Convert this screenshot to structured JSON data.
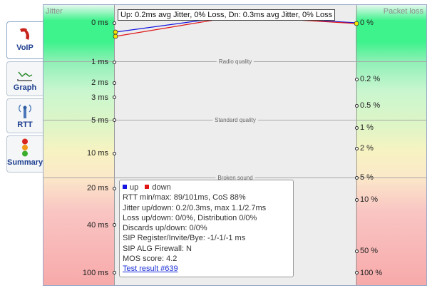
{
  "tabs": [
    {
      "label": "VoIP",
      "icon": "phone-icon",
      "active": true
    },
    {
      "label": "Graph",
      "icon": "graph-icon",
      "active": false
    },
    {
      "label": "RTT",
      "icon": "antenna-icon",
      "active": false
    },
    {
      "label": "Summary",
      "icon": "traffic-light-icon",
      "active": false
    }
  ],
  "chart": {
    "left_header": "Jitter",
    "right_header": "Packet loss",
    "legend_text": "Up: 0.2ms avg Jitter, 0% Loss, Dn: 0.3ms avg Jitter, 0% Loss",
    "quality_labels": {
      "radio": "Radio quality",
      "standard": "Standard quality",
      "broken": "Broken sound"
    },
    "jitter_ticks": [
      "0 ms",
      "1 ms",
      "2 ms",
      "3 ms",
      "5 ms",
      "10 ms",
      "20 ms",
      "40 ms",
      "100 ms"
    ],
    "loss_ticks": [
      "0 %",
      "0.2 %",
      "0.5 %",
      "1 %",
      "2 %",
      "5 %",
      "10 %",
      "50 %",
      "100 %"
    ],
    "colors": {
      "up": "#1515e0",
      "down": "#e01515"
    }
  },
  "info": {
    "legend_up": "up",
    "legend_down": "down",
    "rtt": "RTT min/max: 89/101ms, CoS 88%",
    "jitter": "Jitter up/down: 0.2/0.3ms, max 1.1/2.7ms",
    "loss": "Loss up/down: 0/0%, Distribution 0/0%",
    "discards": "Discards up/down: 0/0%",
    "sip": "SIP Register/Invite/Bye: -1/-1/-1 ms",
    "alg": "SIP ALG Firewall: N",
    "mos": "MOS score: 4.2",
    "link": "Test result #639"
  }
}
